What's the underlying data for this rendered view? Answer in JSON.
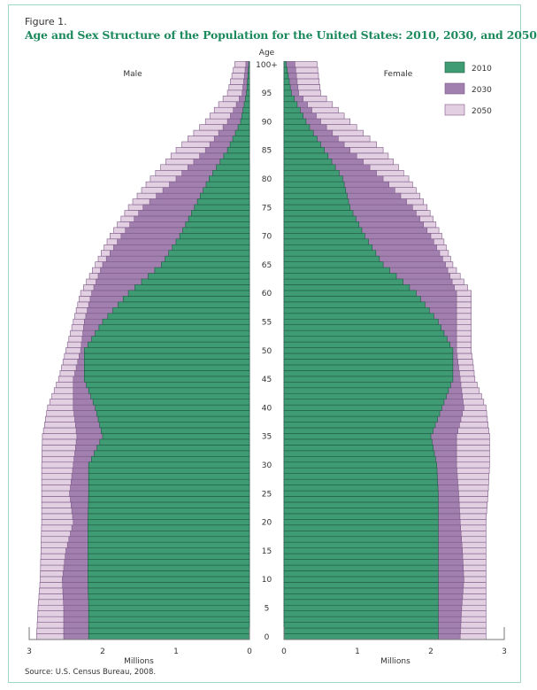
{
  "figure_label": "Figure 1.",
  "source": "Source: U.S. Census Bureau, 2008.",
  "colors": {
    "y2010": "#3f9b74",
    "y2030": "#a17fae",
    "y2050": "#e2d0e2",
    "outline2010": "#1e5b42",
    "outline": "#7d5a88",
    "frame": "#9fd6c6",
    "title": "#1d8a5e"
  },
  "chart_data": {
    "type": "bar",
    "subtype": "population-pyramid",
    "title": "Age and Sex Structure of the Population for the United States: 2010, 2030, and 2050",
    "ylabel": "Age",
    "xlabel_left": "Millions",
    "xlabel_right": "Millions",
    "left_group": "Male",
    "right_group": "Female",
    "xlim": [
      0,
      3
    ],
    "x_ticks_left": [
      "3",
      "2",
      "1",
      "0"
    ],
    "x_ticks_right": [
      "0",
      "1",
      "2",
      "3"
    ],
    "y_ticks": [
      "0",
      "5",
      "10",
      "15",
      "20",
      "25",
      "30",
      "35",
      "40",
      "45",
      "50",
      "55",
      "60",
      "65",
      "70",
      "75",
      "80",
      "85",
      "90",
      "95",
      "100+"
    ],
    "legend": [
      "2010",
      "2030",
      "2050"
    ],
    "legend_position": "top-right",
    "ages_keypoints": [
      0,
      5,
      10,
      15,
      20,
      25,
      30,
      35,
      40,
      45,
      50,
      55,
      60,
      65,
      70,
      75,
      80,
      85,
      90,
      95,
      100
    ],
    "series": [
      {
        "name": "Male 2010",
        "sex": "male",
        "year": "2010",
        "values": [
          2.19,
          2.19,
          2.2,
          2.2,
          2.2,
          2.19,
          2.19,
          2.0,
          2.1,
          2.25,
          2.25,
          2.0,
          1.65,
          1.2,
          0.95,
          0.75,
          0.55,
          0.3,
          0.12,
          0.04,
          0.01
        ]
      },
      {
        "name": "Male 2030",
        "sex": "male",
        "year": "2030",
        "values": [
          2.53,
          2.53,
          2.55,
          2.5,
          2.4,
          2.45,
          2.4,
          2.35,
          2.4,
          2.4,
          2.3,
          2.25,
          2.15,
          2.0,
          1.75,
          1.45,
          1.0,
          0.6,
          0.3,
          0.1,
          0.05
        ]
      },
      {
        "name": "Male 2050",
        "sex": "male",
        "year": "2050",
        "values": [
          2.9,
          2.88,
          2.85,
          2.84,
          2.83,
          2.83,
          2.83,
          2.82,
          2.75,
          2.6,
          2.5,
          2.4,
          2.3,
          2.1,
          1.9,
          1.65,
          1.35,
          1.0,
          0.6,
          0.3,
          0.2
        ]
      },
      {
        "name": "Female 2010",
        "sex": "female",
        "year": "2010",
        "values": [
          2.1,
          2.1,
          2.1,
          2.1,
          2.1,
          2.1,
          2.08,
          2.0,
          2.15,
          2.3,
          2.3,
          2.1,
          1.8,
          1.35,
          1.1,
          0.9,
          0.8,
          0.55,
          0.3,
          0.1,
          0.03
        ]
      },
      {
        "name": "Female 2030",
        "sex": "female",
        "year": "2030",
        "values": [
          2.4,
          2.42,
          2.45,
          2.43,
          2.4,
          2.38,
          2.35,
          2.35,
          2.45,
          2.4,
          2.35,
          2.35,
          2.35,
          2.2,
          2.0,
          1.75,
          1.35,
          0.9,
          0.5,
          0.2,
          0.15
        ]
      },
      {
        "name": "Female 2050",
        "sex": "female",
        "year": "2050",
        "values": [
          2.75,
          2.75,
          2.75,
          2.75,
          2.75,
          2.78,
          2.8,
          2.8,
          2.75,
          2.6,
          2.55,
          2.55,
          2.55,
          2.3,
          2.15,
          1.95,
          1.7,
          1.35,
          0.9,
          0.5,
          0.45
        ]
      }
    ]
  }
}
